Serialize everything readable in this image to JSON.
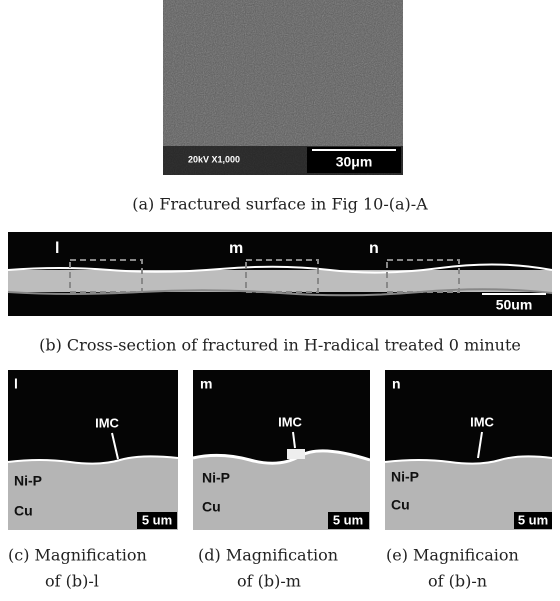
{
  "panels": [
    {
      "micro_info": "20kV X1,000",
      "scale_bar": "30μm",
      "caption": "(a) Fractured surface in Fig 10-(a)-A"
    },
    {
      "markers": [
        "l",
        "m",
        "n"
      ],
      "scale_bar": "50um",
      "caption": "(b) Cross-section of fractured in H-radical treated 0 minute"
    },
    {
      "marker": "l",
      "imc": "IMC",
      "layer1": "Ni-P",
      "layer2": "Cu",
      "scale_bar": "5 um",
      "caption_lines": [
        "(c) Magnification",
        "of (b)-l"
      ]
    },
    {
      "marker": "m",
      "imc": "IMC",
      "layer1": "Ni-P",
      "layer2": "Cu",
      "scale_bar": "5 um",
      "caption_lines": [
        "(d) Magnification",
        "of (b)-m"
      ]
    },
    {
      "marker": "n",
      "imc": "IMC",
      "layer1": "Ni-P",
      "layer2": "Cu",
      "scale_bar": "5 um",
      "caption_lines": [
        "(e) Magnificaion",
        "of (b)-n"
      ]
    }
  ]
}
